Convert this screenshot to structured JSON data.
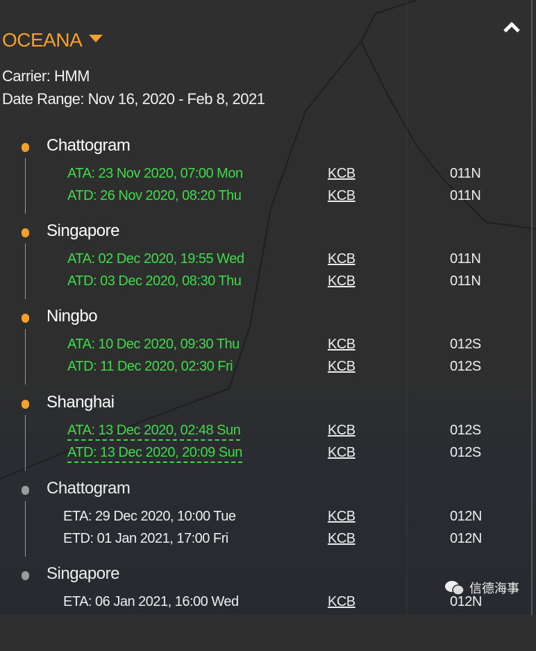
{
  "header": {
    "title": "OCEANA",
    "carrier": "Carrier: HMM",
    "date_range": "Date Range: Nov 16, 2020 - Feb 8, 2021"
  },
  "colors": {
    "accent": "#f5a02a",
    "actual": "#3fdc4a",
    "pending": "#9a9a9a"
  },
  "stops": [
    {
      "port": "Chattogram",
      "status": "visited",
      "rows": [
        {
          "time": "ATA: 23 Nov 2020, 07:00 Mon",
          "service": "KCB",
          "voyage": "011N"
        },
        {
          "time": "ATD: 26 Nov 2020, 08:20 Thu",
          "service": "KCB",
          "voyage": "011N"
        }
      ]
    },
    {
      "port": "Singapore",
      "status": "visited",
      "rows": [
        {
          "time": "ATA: 02 Dec 2020, 19:55 Wed",
          "service": "KCB",
          "voyage": "011N"
        },
        {
          "time": "ATD: 03 Dec 2020, 08:30 Thu",
          "service": "KCB",
          "voyage": "011N"
        }
      ]
    },
    {
      "port": "Ningbo",
      "status": "visited",
      "rows": [
        {
          "time": "ATA: 10 Dec 2020, 09:30 Thu",
          "service": "KCB",
          "voyage": "012S"
        },
        {
          "time": "ATD: 11 Dec 2020, 02:30 Fri",
          "service": "KCB",
          "voyage": "012S"
        }
      ]
    },
    {
      "port": "Shanghai",
      "status": "visited",
      "rows": [
        {
          "time": "ATA: 13 Dec 2020, 02:48 Sun",
          "service": "KCB",
          "voyage": "012S"
        },
        {
          "time": "ATD: 13 Dec 2020, 20:09 Sun",
          "service": "KCB",
          "voyage": "012S"
        }
      ]
    },
    {
      "port": "Chattogram",
      "status": "upcoming",
      "rows": [
        {
          "time": "ETA: 29 Dec 2020, 10:00 Tue",
          "service": "KCB",
          "voyage": "012N"
        },
        {
          "time": "ETD: 01 Jan 2021, 17:00 Fri",
          "service": "KCB",
          "voyage": "012N"
        }
      ]
    },
    {
      "port": "Singapore",
      "status": "upcoming",
      "rows": [
        {
          "time": "ETA: 06 Jan 2021, 16:00 Wed",
          "service": "KCB",
          "voyage": "012N"
        }
      ]
    }
  ],
  "watermark": "信德海事"
}
